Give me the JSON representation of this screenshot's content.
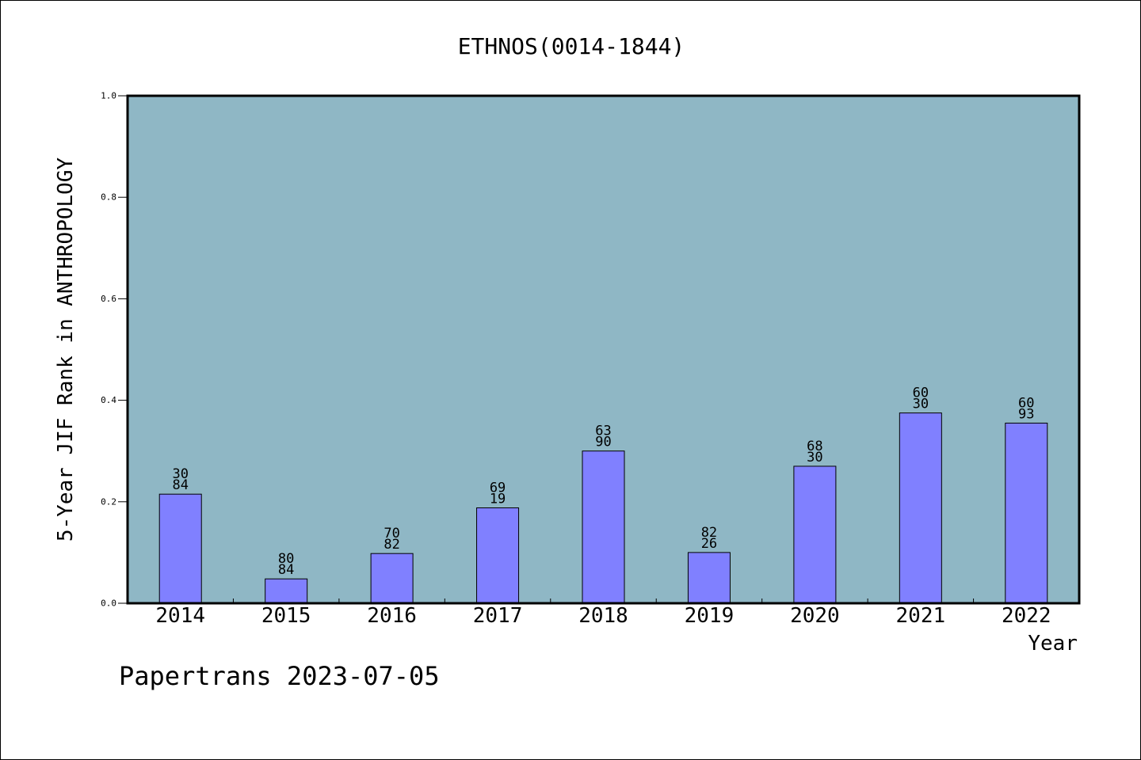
{
  "chart_data": {
    "type": "bar",
    "title": "ETHNOS(0014-1844)",
    "xlabel": "Year",
    "ylabel": "5-Year JIF Rank in ANTHROPOLOGY",
    "categories": [
      "2014",
      "2015",
      "2016",
      "2017",
      "2018",
      "2019",
      "2020",
      "2021",
      "2022"
    ],
    "values": [
      0.215,
      0.048,
      0.098,
      0.188,
      0.3,
      0.1,
      0.27,
      0.375,
      0.355
    ],
    "bar_labels": [
      [
        "30",
        "84"
      ],
      [
        "80",
        "84"
      ],
      [
        "70",
        "82"
      ],
      [
        "69",
        "19"
      ],
      [
        "63",
        "90"
      ],
      [
        "82",
        "26"
      ],
      [
        "68",
        "30"
      ],
      [
        "60",
        "30"
      ],
      [
        "60",
        "93"
      ]
    ],
    "ylim": [
      0,
      1
    ],
    "yticks": [
      "0.0",
      "0.2",
      "0.4",
      "0.6",
      "0.8",
      "1.0"
    ],
    "grid": false,
    "colors": {
      "plot_bg": "#8fb7c5",
      "bar": "#8080ff",
      "bar_edge": "#000000"
    }
  },
  "footer": {
    "text": "Papertrans 2023-07-05"
  }
}
